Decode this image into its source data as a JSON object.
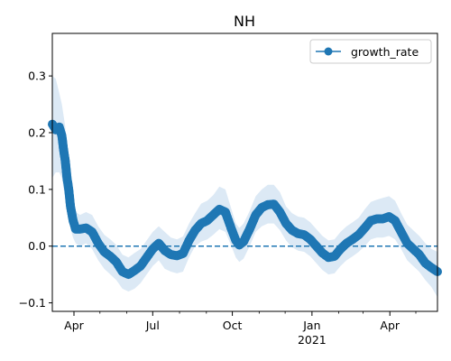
{
  "chart_data": {
    "type": "line",
    "title": "NH",
    "xlabel": "",
    "ylabel": "",
    "xlim": [
      "2020-03-07",
      "2021-05-26"
    ],
    "ylim": [
      -0.115,
      0.375
    ],
    "yticks": [
      -0.1,
      0.0,
      0.1,
      0.2,
      0.3
    ],
    "ytick_labels": [
      "−0.1",
      "0.0",
      "0.1",
      "0.2",
      "0.3"
    ],
    "xticks": [
      {
        "date": "2020-04-01",
        "label": "Apr",
        "sublabel": ""
      },
      {
        "date": "2020-07-01",
        "label": "Jul",
        "sublabel": ""
      },
      {
        "date": "2020-10-01",
        "label": "Oct",
        "sublabel": ""
      },
      {
        "date": "2021-01-01",
        "label": "Jan",
        "sublabel": "2021"
      },
      {
        "date": "2021-04-01",
        "label": "Apr",
        "sublabel": ""
      }
    ],
    "grid": false,
    "legend": {
      "position": "top-right",
      "entries": [
        "growth_rate"
      ]
    },
    "reference_line": {
      "y": 0.0,
      "style": "dashed",
      "color": "#1f77b4"
    },
    "series": [
      {
        "name": "growth_rate",
        "color": "#1f77b4",
        "marker": "circle",
        "band_color": "#dce9f5",
        "x": [
          "2020-03-07",
          "2020-03-11",
          "2020-03-15",
          "2020-03-18",
          "2020-03-20",
          "2020-03-22",
          "2020-03-24",
          "2020-03-26",
          "2020-03-28",
          "2020-03-31",
          "2020-04-03",
          "2020-04-08",
          "2020-04-15",
          "2020-04-22",
          "2020-04-29",
          "2020-05-06",
          "2020-05-13",
          "2020-05-20",
          "2020-05-27",
          "2020-06-03",
          "2020-06-10",
          "2020-06-17",
          "2020-06-24",
          "2020-07-01",
          "2020-07-08",
          "2020-07-15",
          "2020-07-22",
          "2020-07-29",
          "2020-08-05",
          "2020-08-12",
          "2020-08-19",
          "2020-08-26",
          "2020-09-02",
          "2020-09-09",
          "2020-09-16",
          "2020-09-23",
          "2020-09-30",
          "2020-10-05",
          "2020-10-09",
          "2020-10-14",
          "2020-10-21",
          "2020-10-28",
          "2020-11-04",
          "2020-11-11",
          "2020-11-18",
          "2020-11-25",
          "2020-12-02",
          "2020-12-09",
          "2020-12-16",
          "2020-12-23",
          "2020-12-30",
          "2021-01-06",
          "2021-01-13",
          "2021-01-20",
          "2021-01-27",
          "2021-02-03",
          "2021-02-10",
          "2021-02-17",
          "2021-02-24",
          "2021-03-03",
          "2021-03-10",
          "2021-03-17",
          "2021-03-24",
          "2021-03-31",
          "2021-04-07",
          "2021-04-14",
          "2021-04-21",
          "2021-04-28",
          "2021-05-05",
          "2021-05-12",
          "2021-05-19",
          "2021-05-26"
        ],
        "y": [
          0.215,
          0.205,
          0.21,
          0.195,
          0.17,
          0.15,
          0.12,
          0.1,
          0.07,
          0.045,
          0.03,
          0.03,
          0.032,
          0.025,
          0.005,
          -0.01,
          -0.018,
          -0.028,
          -0.045,
          -0.05,
          -0.043,
          -0.035,
          -0.02,
          -0.005,
          0.005,
          -0.008,
          -0.015,
          -0.017,
          -0.013,
          0.01,
          0.028,
          0.04,
          0.045,
          0.055,
          0.065,
          0.06,
          0.03,
          0.01,
          0.002,
          0.008,
          0.03,
          0.055,
          0.068,
          0.073,
          0.074,
          0.06,
          0.04,
          0.028,
          0.022,
          0.02,
          0.012,
          0.0,
          -0.012,
          -0.02,
          -0.018,
          -0.005,
          0.005,
          0.012,
          0.02,
          0.032,
          0.045,
          0.048,
          0.048,
          0.052,
          0.045,
          0.025,
          0.005,
          -0.005,
          -0.015,
          -0.03,
          -0.038,
          -0.045
        ],
        "lower": [
          0.12,
          0.13,
          0.13,
          0.12,
          0.1,
          0.09,
          0.07,
          0.05,
          0.03,
          0.015,
          0.005,
          0.0,
          0.005,
          -0.005,
          -0.025,
          -0.04,
          -0.05,
          -0.06,
          -0.075,
          -0.08,
          -0.075,
          -0.065,
          -0.05,
          -0.035,
          -0.025,
          -0.04,
          -0.045,
          -0.048,
          -0.045,
          -0.02,
          0.0,
          0.008,
          0.012,
          0.02,
          0.03,
          0.025,
          0.0,
          -0.02,
          -0.028,
          -0.022,
          0.0,
          0.025,
          0.035,
          0.04,
          0.04,
          0.028,
          0.01,
          -0.002,
          -0.008,
          -0.01,
          -0.018,
          -0.03,
          -0.042,
          -0.05,
          -0.048,
          -0.035,
          -0.025,
          -0.018,
          -0.01,
          0.0,
          0.012,
          0.015,
          0.015,
          0.018,
          0.012,
          -0.005,
          -0.025,
          -0.035,
          -0.045,
          -0.06,
          -0.072,
          -0.09
        ],
        "upper": [
          0.3,
          0.295,
          0.27,
          0.25,
          0.23,
          0.21,
          0.17,
          0.15,
          0.11,
          0.08,
          0.06,
          0.055,
          0.06,
          0.055,
          0.035,
          0.02,
          0.012,
          0.002,
          -0.015,
          -0.02,
          -0.012,
          -0.005,
          0.01,
          0.025,
          0.035,
          0.025,
          0.015,
          0.012,
          0.017,
          0.04,
          0.058,
          0.075,
          0.08,
          0.09,
          0.105,
          0.1,
          0.065,
          0.04,
          0.032,
          0.04,
          0.062,
          0.088,
          0.1,
          0.108,
          0.108,
          0.095,
          0.07,
          0.058,
          0.052,
          0.05,
          0.042,
          0.03,
          0.018,
          0.01,
          0.012,
          0.025,
          0.035,
          0.042,
          0.05,
          0.065,
          0.078,
          0.082,
          0.085,
          0.088,
          0.08,
          0.058,
          0.038,
          0.028,
          0.018,
          0.005,
          -0.005,
          -0.01
        ]
      }
    ]
  }
}
